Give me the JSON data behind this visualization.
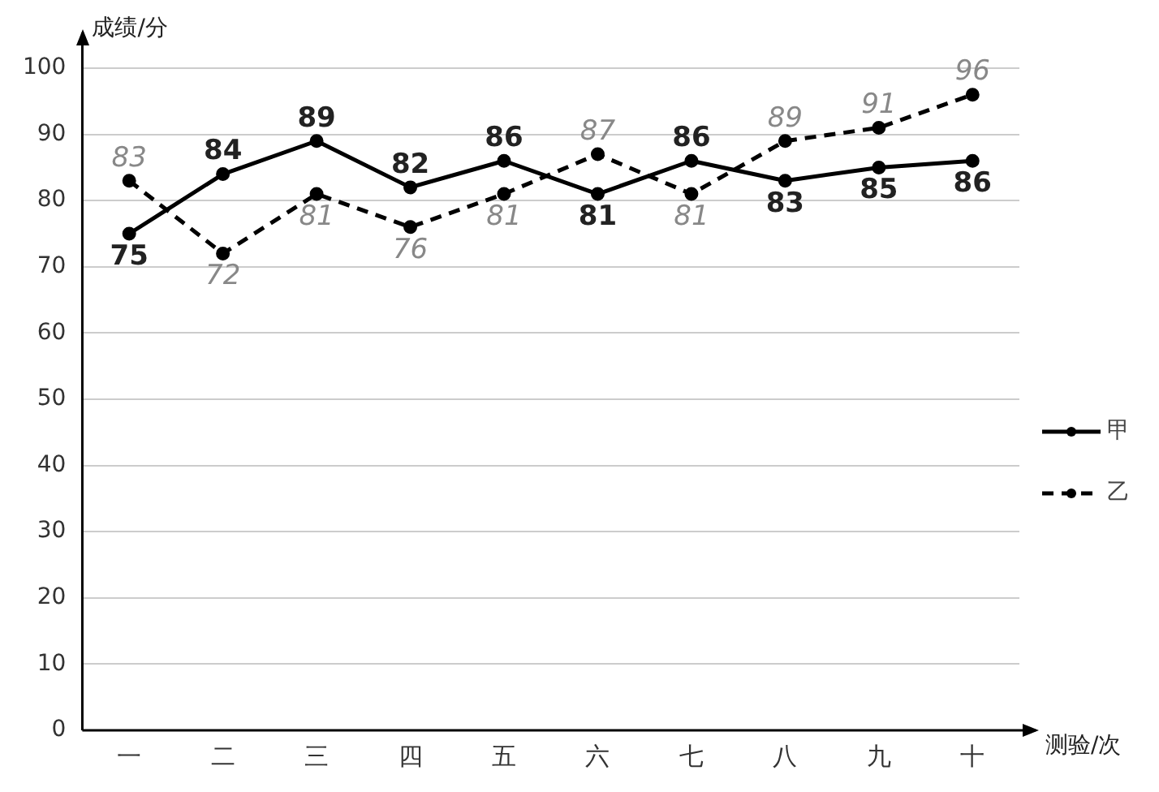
{
  "chart_data": {
    "type": "line",
    "xlabel": "测验/次",
    "ylabel": "成绩/分",
    "categories": [
      "一",
      "二",
      "三",
      "四",
      "五",
      "六",
      "七",
      "八",
      "九",
      "十"
    ],
    "series": [
      {
        "name": "甲",
        "color": "#000000",
        "line_style": "solid",
        "values": [
          75,
          84,
          89,
          82,
          86,
          81,
          86,
          83,
          85,
          86
        ]
      },
      {
        "name": "乙",
        "color": "#000000",
        "line_style": "dashed",
        "values": [
          83,
          72,
          81,
          76,
          81,
          87,
          81,
          89,
          91,
          96
        ]
      }
    ],
    "ylim": [
      0,
      100
    ],
    "yticks": [
      0,
      10,
      20,
      30,
      40,
      50,
      60,
      70,
      80,
      90,
      100
    ],
    "grid": "y",
    "legend": "right",
    "marker": "circle",
    "data_labels": true
  }
}
